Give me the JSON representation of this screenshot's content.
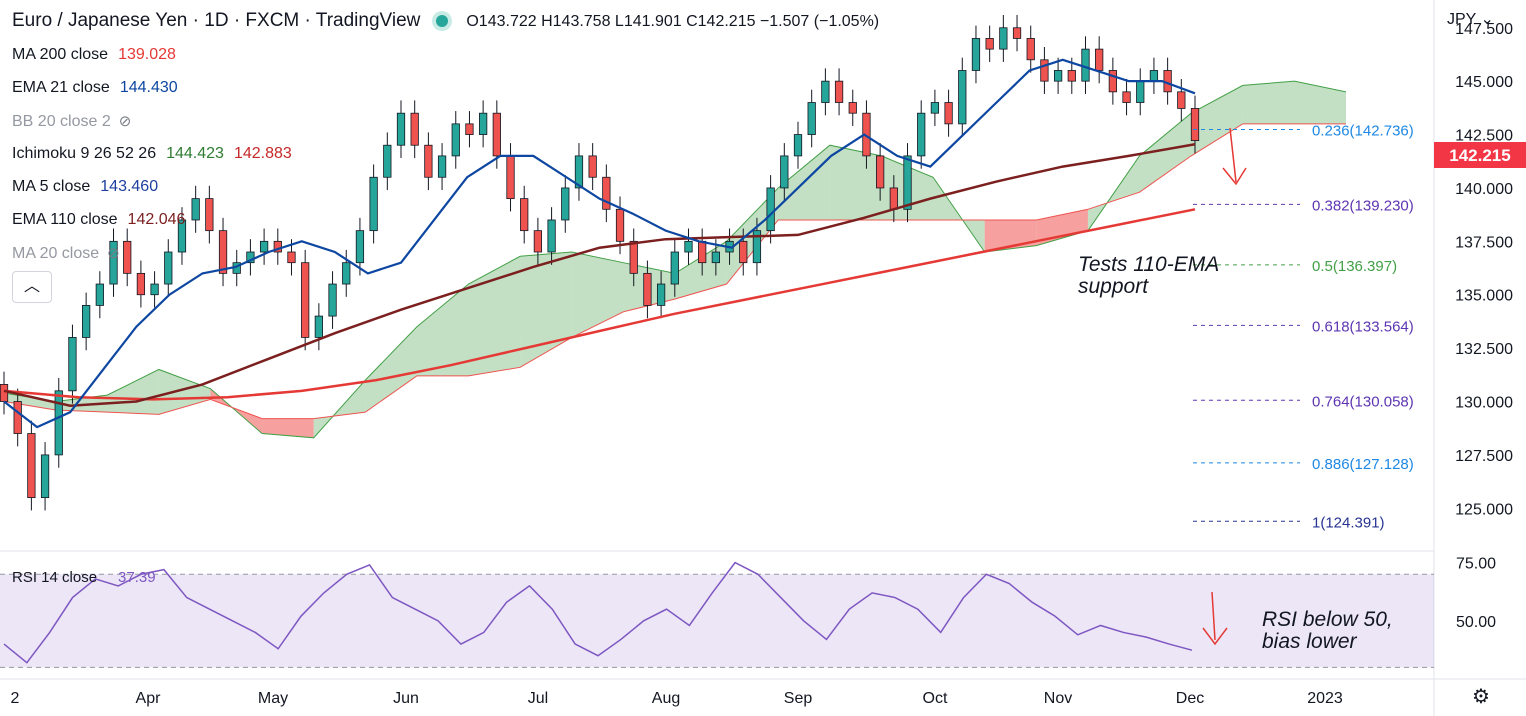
{
  "header": {
    "title": "Euro / Japanese Yen · 1D · FXCM · TradingView",
    "ohlc": "O143.722  H143.758  L141.901  C142.215  −1.507 (−1.05%)"
  },
  "legend": [
    {
      "label": "MA 200 close",
      "values": [
        "139.028"
      ],
      "colors": [
        "#e53935"
      ]
    },
    {
      "label": "EMA 21 close",
      "values": [
        "144.430"
      ],
      "colors": [
        "#0d47a1"
      ]
    },
    {
      "label": "BB 20 close 2",
      "values": [],
      "colors": [],
      "hidden": true
    },
    {
      "label": "Ichimoku 9 26 52 26",
      "values": [
        "144.423",
        "142.883"
      ],
      "colors": [
        "#2e7d32",
        "#c62828"
      ]
    },
    {
      "label": "MA 5 close",
      "values": [
        "143.460"
      ],
      "colors": [
        "#1e40a0"
      ]
    },
    {
      "label": "EMA 110 close",
      "values": [
        "142.046"
      ],
      "colors": [
        "#7b1f1f"
      ]
    },
    {
      "label": "MA 20 close",
      "values": [],
      "colors": [],
      "hidden": true
    }
  ],
  "currency": "JPY",
  "price_badge": "142.215",
  "chart_data": {
    "type": "line",
    "title": "Euro / Japanese Yen 1D",
    "x_ticks": [
      "2",
      "Apr",
      "May",
      "Jun",
      "Jul",
      "Aug",
      "Sep",
      "Oct",
      "Nov",
      "Dec",
      "2023"
    ],
    "y_ticks": [
      "147.500",
      "145.000",
      "142.500",
      "140.000",
      "137.500",
      "135.000",
      "132.500",
      "130.000",
      "127.500",
      "125.000"
    ],
    "ylim": [
      123.0,
      148.8
    ],
    "series": [
      {
        "name": "Close",
        "color": "#131722",
        "values": [
          130.0,
          128.5,
          125.5,
          127.5,
          130.5,
          133.0,
          134.5,
          135.5,
          137.5,
          136.0,
          135.0,
          135.5,
          137.0,
          138.5,
          139.5,
          138.0,
          136.0,
          136.5,
          137.0,
          137.5,
          137.0,
          136.5,
          133.0,
          134.0,
          135.5,
          136.5,
          138.0,
          140.5,
          142.0,
          143.5,
          142.0,
          140.5,
          141.5,
          143.0,
          142.5,
          143.5,
          141.5,
          139.5,
          138.0,
          137.0,
          138.5,
          140.0,
          141.5,
          140.5,
          139.0,
          137.5,
          136.0,
          134.5,
          135.5,
          137.0,
          137.5,
          136.5,
          137.0,
          137.5,
          136.5,
          138.0,
          140.0,
          141.5,
          142.5,
          144.0,
          145.0,
          144.0,
          143.5,
          141.5,
          140.0,
          139.0,
          141.5,
          143.5,
          144.0,
          143.0,
          145.5,
          147.0,
          146.5,
          147.5,
          147.0,
          146.0,
          145.0,
          145.5,
          145.0,
          146.5,
          145.5,
          144.5,
          144.0,
          145.0,
          145.5,
          144.5,
          143.722,
          142.215
        ]
      },
      {
        "name": "MA 200 close",
        "color": "#e53935",
        "values": [
          130.5,
          130.2,
          130.1,
          130.2,
          130.5,
          131.0,
          131.7,
          132.5,
          133.3,
          134.1,
          134.8,
          135.5,
          136.2,
          136.9,
          137.6,
          138.3,
          139.0
        ]
      },
      {
        "name": "EMA 110 close",
        "color": "#7b1f1f",
        "values": [
          130.5,
          129.8,
          130.0,
          130.8,
          132.0,
          133.2,
          134.3,
          135.3,
          136.3,
          137.2,
          137.6,
          137.7,
          137.8,
          138.6,
          139.5,
          140.3,
          141.0,
          141.5,
          142.046
        ]
      },
      {
        "name": "EMA 21 close",
        "color": "#0d47a1",
        "values": [
          130.0,
          128.8,
          129.5,
          131.5,
          133.5,
          135.0,
          136.0,
          136.3,
          137.0,
          137.5,
          137.0,
          136.0,
          136.5,
          138.5,
          140.5,
          141.5,
          141.5,
          140.5,
          139.5,
          138.8,
          138.0,
          137.5,
          137.2,
          138.5,
          140.0,
          141.5,
          142.5,
          141.5,
          141.0,
          142.5,
          144.0,
          145.5,
          146.0,
          145.5,
          145.0,
          145.0,
          144.43
        ]
      },
      {
        "name": "RSI 14 close",
        "color": "#7e57c2",
        "values": [
          40,
          32,
          45,
          60,
          68,
          65,
          70,
          72,
          60,
          55,
          50,
          45,
          38,
          52,
          62,
          70,
          74,
          60,
          55,
          50,
          40,
          45,
          58,
          65,
          55,
          40,
          35,
          42,
          50,
          55,
          48,
          62,
          75,
          70,
          60,
          50,
          42,
          55,
          62,
          60,
          55,
          45,
          60,
          70,
          66,
          58,
          52,
          44,
          48,
          45,
          43,
          40,
          37.39
        ]
      }
    ],
    "ichimoku_cloud": [
      {
        "x": 0,
        "a": 130.4,
        "b": 130.0
      },
      {
        "x": 1,
        "a": 130.0,
        "b": 129.6
      },
      {
        "x": 2,
        "a": 130.3,
        "b": 129.5
      },
      {
        "x": 3,
        "a": 131.5,
        "b": 129.4
      },
      {
        "x": 4,
        "a": 130.6,
        "b": 130.1
      },
      {
        "x": 5,
        "a": 128.5,
        "b": 129.2
      },
      {
        "x": 6,
        "a": 128.3,
        "b": 129.2
      },
      {
        "x": 7,
        "a": 131.0,
        "b": 129.5
      },
      {
        "x": 8,
        "a": 133.5,
        "b": 131.2
      },
      {
        "x": 9,
        "a": 135.5,
        "b": 131.2
      },
      {
        "x": 10,
        "a": 136.8,
        "b": 131.6
      },
      {
        "x": 11,
        "a": 137.0,
        "b": 133.0
      },
      {
        "x": 12,
        "a": 136.5,
        "b": 134.2
      },
      {
        "x": 13,
        "a": 136.0,
        "b": 134.8
      },
      {
        "x": 14,
        "a": 137.5,
        "b": 135.5
      },
      {
        "x": 15,
        "a": 140.0,
        "b": 138.5
      },
      {
        "x": 16,
        "a": 142.0,
        "b": 138.5
      },
      {
        "x": 17,
        "a": 141.5,
        "b": 138.5
      },
      {
        "x": 18,
        "a": 140.5,
        "b": 138.5
      },
      {
        "x": 19,
        "a": 137.0,
        "b": 138.5
      },
      {
        "x": 20,
        "a": 137.3,
        "b": 138.5
      },
      {
        "x": 21,
        "a": 138.0,
        "b": 139.0
      },
      {
        "x": 22,
        "a": 141.5,
        "b": 139.8
      },
      {
        "x": 23,
        "a": 143.5,
        "b": 141.5
      },
      {
        "x": 24,
        "a": 144.8,
        "b": 143.0
      },
      {
        "x": 25,
        "a": 145.0,
        "b": 143.0
      },
      {
        "x": 26,
        "a": 144.5,
        "b": 143.0
      }
    ],
    "fibonacci": [
      {
        "label": "0.236(142.736)",
        "level": 142.736,
        "color": "#1e88e5"
      },
      {
        "label": "0.382(139.230)",
        "level": 139.23,
        "color": "#5e35b1"
      },
      {
        "label": "0.5(136.397)",
        "level": 136.397,
        "color": "#43a047"
      },
      {
        "label": "0.618(133.564)",
        "level": 133.564,
        "color": "#5e35b1"
      },
      {
        "label": "0.764(130.058)",
        "level": 130.058,
        "color": "#5e35b1"
      },
      {
        "label": "0.886(127.128)",
        "level": 127.128,
        "color": "#1e88e5"
      },
      {
        "label": "1(124.391)",
        "level": 124.391,
        "color": "#283593"
      }
    ],
    "annotations": [
      "Tests 110-EMA\nsupport",
      "RSI below 50,\nbias lower"
    ],
    "rsi": {
      "label": "RSI 14 close",
      "value": "37.39",
      "y_ticks": [
        "75.00",
        "50.00"
      ],
      "band": [
        30,
        70
      ],
      "ylim": [
        25,
        80
      ]
    }
  }
}
